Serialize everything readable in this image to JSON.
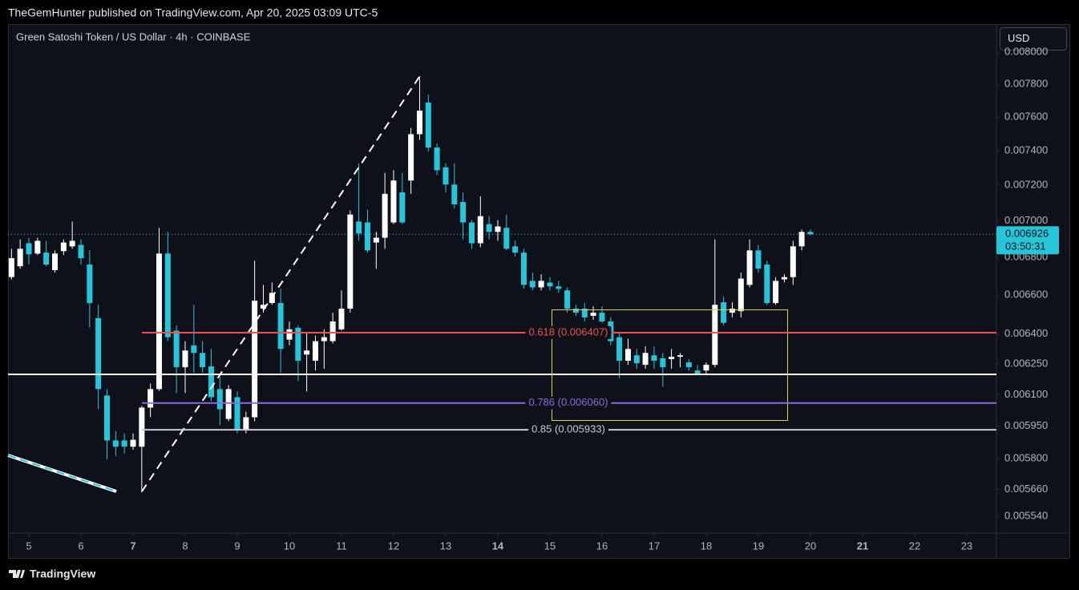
{
  "header": {
    "publisher": "TheGemHunter published on TradingView.com, Apr 20, 2025 03:09 UTC-5",
    "brand": "TradingView"
  },
  "chart_data": {
    "type": "candlestick",
    "title": "Green Satoshi Token / US Dollar · 4h · COINBASE",
    "currency_button": "USD",
    "log_scale": true,
    "up_color": "#ffffff",
    "down_color": "#26c6da",
    "x": [
      4.667,
      4.833,
      5,
      5.167,
      5.333,
      5.5,
      5.667,
      5.833,
      6,
      6.167,
      6.333,
      6.5,
      6.667,
      6.833,
      7,
      7.167,
      7.333,
      7.5,
      7.667,
      7.833,
      8,
      8.167,
      8.333,
      8.5,
      8.667,
      8.833,
      9,
      9.167,
      9.333,
      9.5,
      9.667,
      9.833,
      10,
      10.167,
      10.333,
      10.5,
      10.667,
      10.833,
      11,
      11.167,
      11.333,
      11.5,
      11.667,
      11.833,
      12,
      12.167,
      12.333,
      12.5,
      12.667,
      12.833,
      13,
      13.167,
      13.333,
      13.5,
      13.667,
      13.833,
      14,
      14.167,
      14.333,
      14.5,
      14.667,
      14.833,
      15,
      15.167,
      15.333,
      15.5,
      15.667,
      15.833,
      16,
      16.167,
      16.333,
      16.5,
      16.667,
      16.833,
      17,
      17.167,
      17.333,
      17.5,
      17.667,
      17.833,
      18,
      18.167,
      18.333,
      18.5,
      18.667,
      18.833,
      19,
      19.167,
      19.333,
      19.5,
      19.667,
      19.833,
      20
    ],
    "open": [
      0.006695,
      0.006753,
      0.006877,
      0.006821,
      0.006826,
      0.006732,
      0.006834,
      0.00686,
      0.006868,
      0.006762,
      0.006481,
      0.006096,
      0.005883,
      0.005883,
      0.005854,
      0.005854,
      0.006038,
      0.006127,
      0.006821,
      0.006417,
      0.006234,
      0.006343,
      0.006305,
      0.006238,
      0.006127,
      0.005984,
      0.006088,
      0.005935,
      0.005992,
      0.00653,
      0.006559,
      0.006559,
      0.006372,
      0.006432,
      0.006297,
      0.006266,
      0.006364,
      0.006364,
      0.006424,
      0.00653,
      0.006996,
      0.006991,
      0.006881,
      0.006907,
      0.006991,
      0.00716,
      0.007227,
      0.007497,
      0.007687,
      0.007418,
      0.007303,
      0.007204,
      0.007105,
      0.006991,
      0.006877,
      0.006982,
      0.006939,
      0.006961,
      0.00686,
      0.006826,
      0.006675,
      0.006641,
      0.006666,
      0.006646,
      0.006625,
      0.00653,
      0.00653,
      0.006493,
      0.006509,
      0.006464,
      0.006384,
      0.006266,
      0.006293,
      0.006246,
      0.006293,
      0.006278,
      0.006274,
      0.006286,
      0.006258,
      0.006218,
      0.006218,
      0.006246,
      0.006563,
      0.006509,
      0.006517,
      0.006654,
      0.006838,
      0.006762,
      0.006559,
      0.006683,
      0.006695,
      0.00686,
      0.006939
    ],
    "high": [
      0.006847,
      0.006898,
      0.006907,
      0.006907,
      0.00689,
      0.006838,
      0.006898,
      0.006996,
      0.006898,
      0.006838,
      0.00655,
      0.006127,
      0.005927,
      0.005916,
      0.005916,
      0.006046,
      0.006154,
      0.006961,
      0.006939,
      0.006444,
      0.006364,
      0.00655,
      0.006364,
      0.006325,
      0.006187,
      0.006146,
      0.006115,
      0.006018,
      0.006783,
      0.006654,
      0.006666,
      0.006633,
      0.006464,
      0.006444,
      0.006404,
      0.006392,
      0.006424,
      0.006509,
      0.006625,
      0.007057,
      0.007326,
      0.007061,
      0.006939,
      0.007272,
      0.007286,
      0.007272,
      0.007534,
      0.007849,
      0.007736,
      0.007442,
      0.007326,
      0.007326,
      0.00716,
      0.007004,
      0.007137,
      0.007026,
      0.007004,
      0.007035,
      0.00689,
      0.006847,
      0.006719,
      0.00671,
      0.006695,
      0.006675,
      0.006641,
      0.00655,
      0.006559,
      0.006542,
      0.006542,
      0.006485,
      0.006404,
      0.006376,
      0.006325,
      0.006337,
      0.006337,
      0.006305,
      0.006325,
      0.006305,
      0.006274,
      0.006246,
      0.006258,
      0.006898,
      0.006592,
      0.006563,
      0.006719,
      0.006898,
      0.006868,
      0.006783,
      0.006695,
      0.00671,
      0.00689,
      0.006952,
      0.006952
    ],
    "low": [
      0.006683,
      0.00674,
      0.006762,
      0.006813,
      0.006753,
      0.006719,
      0.006813,
      0.006847,
      0.006762,
      0.006432,
      0.00603,
      0.005796,
      0.005811,
      0.005822,
      0.00584,
      0.005646,
      0.005992,
      0.006119,
      0.006364,
      0.006108,
      0.006108,
      0.006207,
      0.006207,
      0.006069,
      0.005954,
      0.005973,
      0.005916,
      0.005916,
      0.005973,
      0.006509,
      0.00655,
      0.006207,
      0.006343,
      0.006166,
      0.006115,
      0.006218,
      0.006226,
      0.006352,
      0.006417,
      0.006509,
      0.00689,
      0.006826,
      0.00674,
      0.006847,
      0.006982,
      0.006982,
      0.007151,
      0.007463,
      0.007395,
      0.007258,
      0.00716,
      0.00707,
      0.006898,
      0.006847,
      0.006855,
      0.006898,
      0.00689,
      0.006838,
      0.006804,
      0.006633,
      0.006625,
      0.006625,
      0.006625,
      0.006612,
      0.006509,
      0.006493,
      0.006464,
      0.006473,
      0.006457,
      0.006343,
      0.006179,
      0.006246,
      0.006226,
      0.006226,
      0.006226,
      0.006139,
      0.006226,
      0.006234,
      0.006218,
      0.006195,
      0.006195,
      0.006234,
      0.006444,
      0.006485,
      0.006485,
      0.006641,
      0.006719,
      0.00655,
      0.00655,
      0.006666,
      0.006654,
      0.006838,
      0.00692
    ],
    "close": [
      0.006796,
      0.006847,
      0.006817,
      0.00689,
      0.006762,
      0.006821,
      0.006881,
      0.00689,
      0.006796,
      0.006559,
      0.006127,
      0.005883,
      0.005854,
      0.005854,
      0.005886,
      0.006038,
      0.006127,
      0.006821,
      0.006384,
      0.006234,
      0.006317,
      0.006305,
      0.006234,
      0.006088,
      0.00603,
      0.006127,
      0.005935,
      0.005992,
      0.006571,
      0.00655,
      0.006612,
      0.006325,
      0.006424,
      0.006266,
      0.006317,
      0.006364,
      0.006384,
      0.006464,
      0.00653,
      0.007035,
      0.00693,
      0.006838,
      0.006907,
      0.007151,
      0.007227,
      0.006991,
      0.007497,
      0.007638,
      0.007418,
      0.007286,
      0.007204,
      0.007092,
      0.006991,
      0.006877,
      0.007026,
      0.006939,
      0.006969,
      0.006847,
      0.006826,
      0.006654,
      0.006641,
      0.006675,
      0.006646,
      0.006633,
      0.00653,
      0.006509,
      0.006485,
      0.006509,
      0.006464,
      0.006364,
      0.006266,
      0.006325,
      0.006254,
      0.006305,
      0.006266,
      0.006234,
      0.006286,
      0.006293,
      0.006234,
      0.006203,
      0.006246,
      0.00655,
      0.006457,
      0.00653,
      0.006687,
      0.006838,
      0.00674,
      0.006559,
      0.006675,
      0.006695,
      0.00686,
      0.006939,
      0.006926
    ],
    "last_price": 0.006926,
    "countdown": "03:50:31",
    "xlim": [
      4.6,
      23.57
    ],
    "xticks": [
      5,
      6,
      7,
      8,
      9,
      10,
      11,
      12,
      13,
      14,
      15,
      16,
      17,
      18,
      19,
      20,
      21,
      22,
      23
    ],
    "xticks_bold": [
      7,
      14,
      21
    ],
    "ylim": [
      0.005467,
      0.00818
    ],
    "yticks": [
      {
        "value": 0.008,
        "label": "0.008000"
      },
      {
        "value": 0.0078,
        "label": "0.007800"
      },
      {
        "value": 0.0076,
        "label": "0.007600"
      },
      {
        "value": 0.0074,
        "label": "0.007400"
      },
      {
        "value": 0.0072,
        "label": "0.007200"
      },
      {
        "value": 0.007,
        "label": "0.007000"
      },
      {
        "value": 0.0068,
        "label": "0.006800"
      },
      {
        "value": 0.0066,
        "label": "0.006600"
      },
      {
        "value": 0.0064,
        "label": "0.006400"
      },
      {
        "value": 0.00625,
        "label": "0.006250"
      },
      {
        "value": 0.0061,
        "label": "0.006100"
      },
      {
        "value": 0.00595,
        "label": "0.005950"
      },
      {
        "value": 0.0058,
        "label": "0.005800"
      },
      {
        "value": 0.00566,
        "label": "0.005660"
      },
      {
        "value": 0.00554,
        "label": "0.005540"
      }
    ],
    "fib_levels": [
      {
        "label": "0.618 (0.006407)",
        "value": 0.006407,
        "color": "#f0504f"
      },
      {
        "label": "0.786 (0.006060)",
        "value": 0.00606,
        "color": "#8e6bd6"
      },
      {
        "label": "0.85 (0.005933)",
        "value": 0.005933,
        "color": "#c8cad0"
      }
    ]
  }
}
